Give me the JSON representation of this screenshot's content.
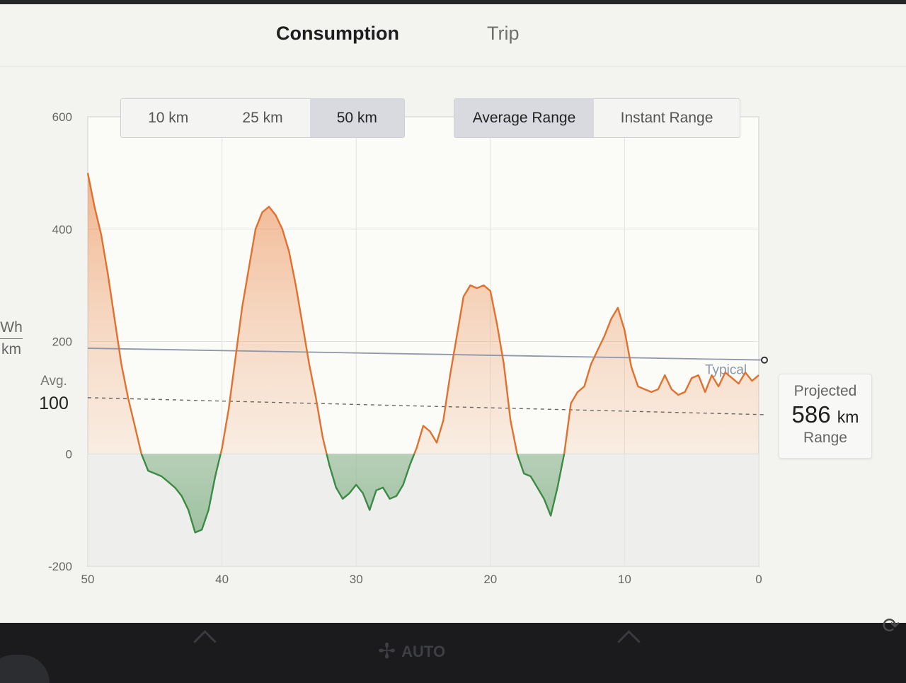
{
  "tabs": {
    "consumption": "Consumption",
    "trip": "Trip",
    "active": "consumption"
  },
  "distance_selector": {
    "options": [
      "10 km",
      "25 km",
      "50 km"
    ],
    "selected": "50 km"
  },
  "range_selector": {
    "options": [
      "Average Range",
      "Instant Range"
    ],
    "selected": "Average Range"
  },
  "y_axis_unit": {
    "numerator": "Wh",
    "denominator": "km"
  },
  "average": {
    "label": "Avg.",
    "value": "100"
  },
  "projected": {
    "label": "Projected",
    "value": "586",
    "unit": "km",
    "sublabel": "Range"
  },
  "bottom_bar": {
    "climate_mode": "AUTO"
  },
  "colors": {
    "consumption_line": "#e0712f",
    "regen_line": "#3c8a44",
    "typical_line": "#8e97ab",
    "average_line": "#666666"
  },
  "chart_data": {
    "type": "area",
    "title": "",
    "xlabel": "",
    "ylabel": "Wh/km",
    "x_direction": "reversed",
    "xlim": [
      50,
      0
    ],
    "ylim": [
      -200,
      600
    ],
    "x_ticks": [
      "50",
      "40",
      "30",
      "20",
      "10",
      "0"
    ],
    "y_ticks": [
      "600",
      "400",
      "200",
      "0",
      "-200"
    ],
    "grid": true,
    "reference_lines": [
      {
        "name": "Typical",
        "label": "Typical",
        "y_start": 188,
        "y_end": 167,
        "style": "solid"
      },
      {
        "name": "Avg.",
        "y": 100,
        "style": "dashed"
      }
    ],
    "series": [
      {
        "name": "",
        "x": [
          50,
          49.5,
          49,
          48.5,
          48,
          47.5,
          47,
          46.5,
          46,
          45.5,
          45,
          44.5,
          44,
          43.5,
          43,
          42.5,
          42,
          41.5,
          41,
          40.5,
          40,
          39.5,
          39,
          38.5,
          38,
          37.5,
          37,
          36.5,
          36,
          35.5,
          35,
          34.5,
          34,
          33.5,
          33,
          32.5,
          32,
          31.5,
          31,
          30.5,
          30,
          29.5,
          29,
          28.5,
          28,
          27.5,
          27,
          26.5,
          26,
          25.5,
          25,
          24.5,
          24,
          23.5,
          23,
          22.5,
          22,
          21.5,
          21,
          20.5,
          20,
          19.5,
          19,
          18.5,
          18,
          17.5,
          17,
          16.5,
          16,
          15.5,
          15,
          14.5,
          14,
          13.5,
          13,
          12.5,
          12,
          11.5,
          11,
          10.5,
          10,
          9.5,
          9,
          8.5,
          8,
          7.5,
          7,
          6.5,
          6,
          5.5,
          5,
          4.5,
          4,
          3.5,
          3,
          2.5,
          2,
          1.5,
          1,
          0.5,
          0
        ],
        "y": [
          500,
          440,
          390,
          320,
          240,
          160,
          100,
          50,
          0,
          -30,
          -35,
          -40,
          -50,
          -60,
          -75,
          -100,
          -140,
          -135,
          -100,
          -40,
          10,
          80,
          170,
          260,
          330,
          400,
          430,
          440,
          425,
          400,
          360,
          300,
          230,
          160,
          100,
          30,
          -20,
          -60,
          -80,
          -70,
          -55,
          -70,
          -100,
          -65,
          -60,
          -80,
          -75,
          -55,
          -20,
          10,
          50,
          40,
          20,
          60,
          140,
          210,
          280,
          300,
          295,
          300,
          290,
          230,
          160,
          60,
          0,
          -35,
          -40,
          -60,
          -80,
          -110,
          -60,
          0,
          90,
          110,
          120,
          160,
          185,
          210,
          240,
          260,
          220,
          155,
          120,
          115,
          110,
          115,
          140,
          115,
          105,
          110,
          135,
          140,
          110,
          140,
          120,
          145,
          135,
          125,
          145,
          130,
          140
        ]
      }
    ]
  }
}
